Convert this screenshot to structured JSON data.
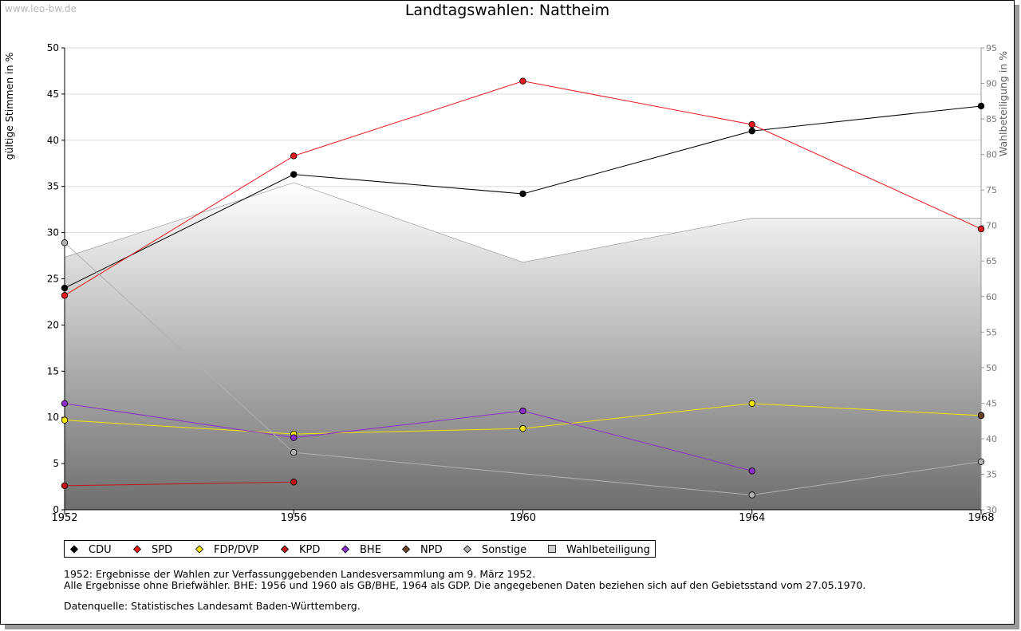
{
  "watermark": "www.leo-bw.de",
  "chart_data": {
    "type": "line",
    "title": "Landtagswahlen: Nattheim",
    "ylabel": "gültige Stimmen in %",
    "y2label": "Wahlbeteiligung in %",
    "x": [
      1952,
      1956,
      1960,
      1964,
      1968
    ],
    "xlim": [
      1952,
      1968
    ],
    "ylim": [
      0,
      50
    ],
    "y2lim": [
      30,
      95
    ],
    "yticks": [
      0,
      5,
      10,
      15,
      20,
      25,
      30,
      35,
      40,
      45,
      50
    ],
    "y2ticks": [
      30,
      35,
      40,
      45,
      50,
      55,
      60,
      65,
      70,
      75,
      80,
      85,
      90,
      95
    ],
    "grid": true,
    "legend_position": "bottom",
    "series": [
      {
        "name": "CDU",
        "color": "#000000",
        "values": [
          24.0,
          36.3,
          34.2,
          41.0,
          43.7
        ]
      },
      {
        "name": "SPD",
        "color": "#e8191c",
        "values": [
          23.2,
          38.3,
          46.4,
          41.7,
          30.4
        ]
      },
      {
        "name": "FDP/DVP",
        "color": "#f2e600",
        "values": [
          9.7,
          8.2,
          8.8,
          11.5,
          10.2
        ]
      },
      {
        "name": "KPD",
        "color": "#c0161b",
        "values": [
          2.6,
          3.0,
          null,
          null,
          null
        ]
      },
      {
        "name": "BHE",
        "color": "#8b2fc9",
        "values": [
          11.5,
          7.8,
          10.7,
          4.2,
          null
        ]
      },
      {
        "name": "NPD",
        "color": "#6b4226",
        "values": [
          null,
          null,
          null,
          null,
          10.2
        ]
      },
      {
        "name": "Sonstige",
        "color": "#b0b0b0",
        "values": [
          28.9,
          6.2,
          null,
          1.6,
          5.2
        ]
      },
      {
        "name": "Wahlbeteiligung",
        "color": "#b8b8b8",
        "axis": "right",
        "values": [
          65.5,
          76.0,
          64.8,
          71.0,
          71.0
        ]
      }
    ]
  },
  "notes": {
    "line1": "1952: Ergebnisse der Wahlen zur Verfassunggebenden Landesversammlung am 9. März 1952.",
    "line2": "Alle Ergebnisse ohne Briefwähler. BHE: 1956 und 1960 als GB/BHE, 1964 als GDP. Die angegebenen Daten beziehen sich auf den Gebietsstand vom 27.05.1970.",
    "line3": "Datenquelle: Statistisches Landesamt Baden-Württemberg."
  }
}
